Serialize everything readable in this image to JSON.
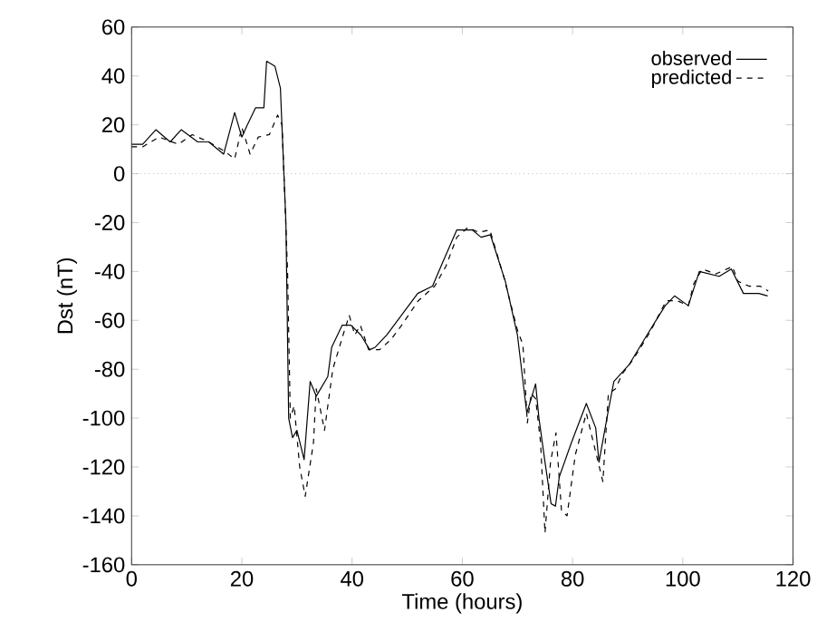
{
  "chart_data": {
    "type": "line",
    "xlabel": "Time (hours)",
    "ylabel": "Dst (nT)",
    "xlim": [
      0,
      120
    ],
    "ylim": [
      -160,
      60
    ],
    "xticks": [
      0,
      20,
      40,
      60,
      80,
      100,
      120
    ],
    "yticks": [
      -160,
      -140,
      -120,
      -100,
      -80,
      -60,
      -40,
      -20,
      0,
      20,
      40,
      60
    ],
    "legend": "top right",
    "grid": false,
    "marker": "none",
    "ref_lines": [
      {
        "axis": "y",
        "value": 0,
        "color": "#999999",
        "line_style": "dotted"
      }
    ],
    "series": [
      {
        "name": "observed",
        "color": "#000000",
        "line_style": "solid",
        "x": [
          0,
          2,
          4.4,
          7,
          9,
          12,
          14,
          16.7,
          18.7,
          20,
          21,
          22.5,
          24,
          24.5,
          26,
          27,
          28,
          28.5,
          29.2,
          30,
          31.3,
          32.4,
          33.5,
          35.6,
          36.3,
          38.2,
          39.8,
          41.6,
          43.2,
          44.2,
          46.3,
          48.6,
          51.9,
          54.6,
          56.3,
          59,
          61.8,
          63.4,
          65.1,
          67.8,
          70,
          71.7,
          73.3,
          73.9,
          75,
          76.1,
          76.9,
          77.6,
          79.8,
          82.5,
          84.2,
          84.8,
          86.4,
          87.5,
          90.3,
          93.5,
          96.8,
          98.5,
          101,
          103,
          106.6,
          108.8,
          111,
          113.8,
          115.4
        ],
        "values": [
          12,
          12,
          18,
          13,
          18,
          13,
          13,
          8,
          25,
          15,
          20,
          27,
          27,
          46,
          44,
          35,
          -20,
          -100,
          -108,
          -105,
          -117,
          -85,
          -91,
          -83,
          -71,
          -62,
          -62,
          -66,
          -72,
          -71,
          -66,
          -59,
          -49,
          -46,
          -37,
          -23,
          -23,
          -26,
          -25,
          -44,
          -66,
          -98,
          -86,
          -100,
          -118,
          -135,
          -136,
          -124,
          -110,
          -94,
          -104,
          -118,
          -98,
          -85,
          -78,
          -66,
          -54,
          -50,
          -54,
          -40,
          -42,
          -39,
          -49,
          -49,
          -50
        ]
      },
      {
        "name": "predicted",
        "color": "#000000",
        "line_style": "dashed",
        "x": [
          0,
          2,
          5,
          8.5,
          11,
          14,
          17,
          18.7,
          20,
          21.5,
          23,
          25,
          26.5,
          27.3,
          28.3,
          28.8,
          29.5,
          30.5,
          31.5,
          33,
          33.5,
          35,
          36.5,
          38.5,
          39.5,
          40.5,
          41.5,
          43,
          45,
          47,
          49,
          52,
          55,
          57,
          59,
          61,
          63,
          65,
          67.5,
          70,
          71,
          71.8,
          72.5,
          73.3,
          74.2,
          75,
          76,
          77,
          78,
          79,
          80.5,
          82.5,
          84,
          85.5,
          86.5,
          87.8,
          89,
          91,
          94,
          97,
          99,
          101,
          102,
          103.5,
          106,
          109,
          110,
          112,
          114,
          115.5
        ],
        "values": [
          11,
          11,
          15,
          12,
          16,
          13,
          9,
          6,
          19,
          8,
          15,
          16,
          24,
          20,
          -40,
          -100,
          -95,
          -120,
          -132,
          -110,
          -88,
          -105,
          -80,
          -65,
          -58,
          -66,
          -62,
          -72,
          -72,
          -68,
          -62,
          -52,
          -46,
          -38,
          -26,
          -22,
          -24,
          -23,
          -42,
          -64,
          -70,
          -102,
          -90,
          -92,
          -110,
          -147,
          -118,
          -106,
          -138,
          -140,
          -115,
          -98,
          -112,
          -126,
          -90,
          -88,
          -82,
          -76,
          -65,
          -52,
          -52,
          -54,
          -45,
          -39,
          -41,
          -38,
          -44,
          -46,
          -46,
          -48
        ]
      }
    ]
  }
}
